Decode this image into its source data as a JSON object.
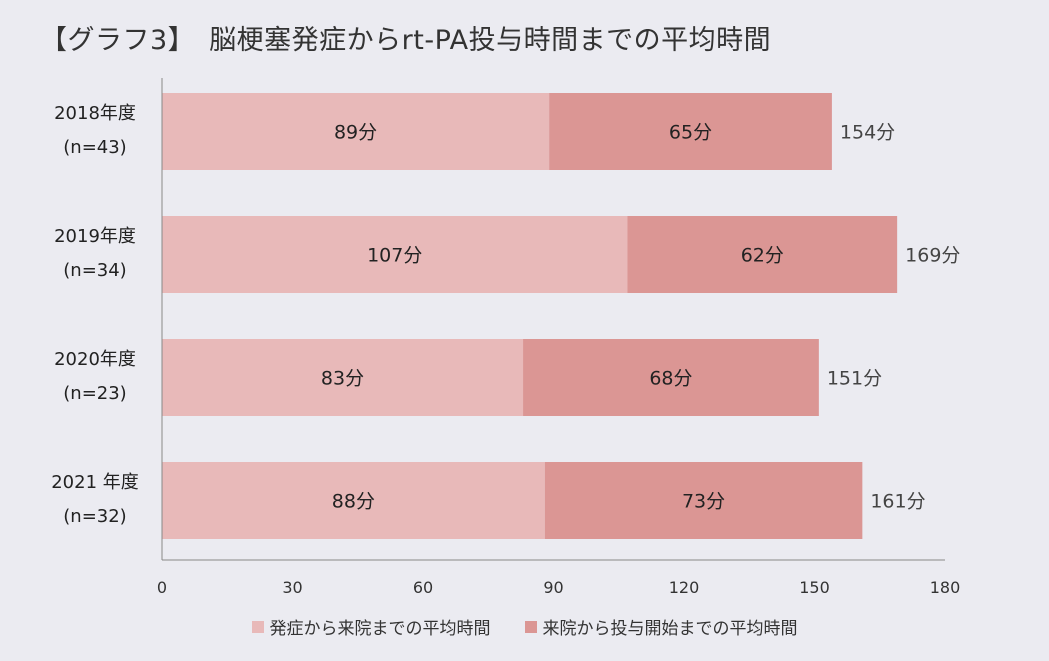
{
  "title": "【グラフ3】　脳梗塞発症からrt-PA投与時間までの平均時間",
  "chart_data": {
    "type": "bar",
    "orientation": "horizontal",
    "stacked": true,
    "categories": [
      {
        "label": "2018年度",
        "sublabel": "(n=43)"
      },
      {
        "label": "2019年度",
        "sublabel": "(n=34)"
      },
      {
        "label": "2020年度",
        "sublabel": "(n=23)"
      },
      {
        "label": "2021 年度",
        "sublabel": "(n=32)"
      }
    ],
    "series": [
      {
        "name": "発症から来院までの平均時間",
        "color": "#e8b9b9",
        "values": [
          89,
          107,
          83,
          88
        ],
        "labels": [
          "89分",
          "107分",
          "83分",
          "88分"
        ]
      },
      {
        "name": "来院から投与開始までの平均時間",
        "color": "#db9694",
        "values": [
          65,
          62,
          68,
          73
        ],
        "labels": [
          "65分",
          "62分",
          "68分",
          "73分"
        ]
      }
    ],
    "totals": [
      154,
      169,
      151,
      161
    ],
    "total_labels": [
      "154分",
      "169分",
      "151分",
      "161分"
    ],
    "xlim": [
      0,
      180
    ],
    "xticks": [
      "0",
      "30",
      "60",
      "90",
      "120",
      "150",
      "180"
    ],
    "legend_position": "bottom",
    "grid": false
  }
}
